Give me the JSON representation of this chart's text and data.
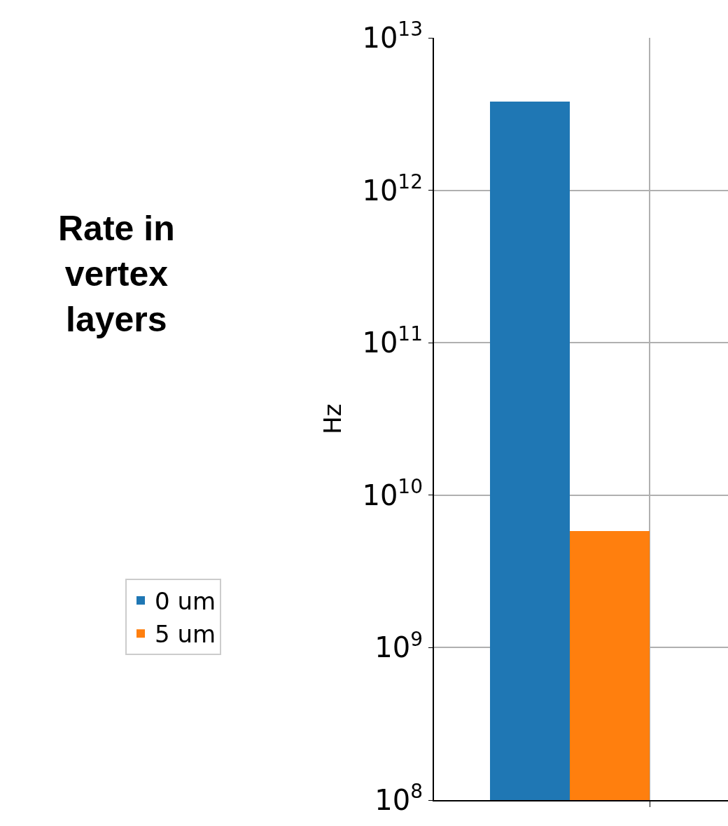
{
  "chart_data": {
    "type": "bar",
    "title": "Rate in\nvertex\nlayers",
    "ylabel": "Hz",
    "categories": [
      null
    ],
    "series": [
      {
        "name": "0 um",
        "color": "#1f77b4",
        "values": [
          3800000000000.0
        ]
      },
      {
        "name": "5 um",
        "color": "#ff7f0e",
        "values": [
          5800000000.0
        ]
      }
    ],
    "log": "y",
    "ylim": [
      100000000.0,
      10000000000000.0
    ],
    "yticks": [
      {
        "value": 100000000.0,
        "label": "10$^{8}$"
      },
      {
        "value": 1000000000.0,
        "label": "10$^{9}$"
      },
      {
        "value": 10000000000.0,
        "label": "10$^{10}$"
      },
      {
        "value": 100000000000.0,
        "label": "10$^{11}$"
      },
      {
        "value": 1000000000000.0,
        "label": "10$^{12}$"
      },
      {
        "value": 10000000000000.0,
        "label": "10$^{13}$"
      }
    ],
    "grid": true,
    "legend": "left"
  }
}
